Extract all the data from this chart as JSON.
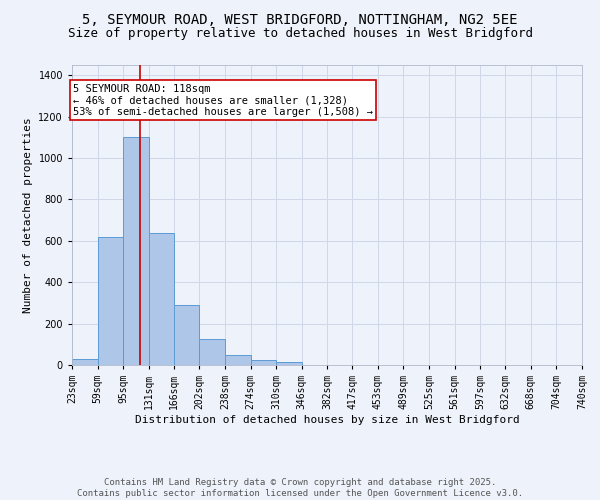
{
  "title_line1": "5, SEYMOUR ROAD, WEST BRIDGFORD, NOTTINGHAM, NG2 5EE",
  "title_line2": "Size of property relative to detached houses in West Bridgford",
  "xlabel": "Distribution of detached houses by size in West Bridgford",
  "ylabel": "Number of detached properties",
  "bins": [
    23,
    59,
    95,
    131,
    166,
    202,
    238,
    274,
    310,
    346,
    382,
    417,
    453,
    489,
    525,
    561,
    597,
    632,
    668,
    704,
    740
  ],
  "bin_labels": [
    "23sqm",
    "59sqm",
    "95sqm",
    "131sqm",
    "166sqm",
    "202sqm",
    "238sqm",
    "274sqm",
    "310sqm",
    "346sqm",
    "382sqm",
    "417sqm",
    "453sqm",
    "489sqm",
    "525sqm",
    "561sqm",
    "597sqm",
    "632sqm",
    "668sqm",
    "704sqm",
    "740sqm"
  ],
  "values": [
    30,
    620,
    1100,
    640,
    290,
    125,
    50,
    25,
    15,
    0,
    0,
    0,
    0,
    0,
    0,
    0,
    0,
    0,
    0,
    0
  ],
  "bar_color": "#aec6e8",
  "bar_edge_color": "#5b9bd5",
  "grid_color": "#d0d8e8",
  "bg_color": "#eef2fa",
  "vline_x": 118,
  "vline_color": "#cc0000",
  "annotation_text": "5 SEYMOUR ROAD: 118sqm\n← 46% of detached houses are smaller (1,328)\n53% of semi-detached houses are larger (1,508) →",
  "annotation_box_color": "#ffffff",
  "annotation_box_edge": "#cc0000",
  "ylim": [
    0,
    1450
  ],
  "yticks": [
    0,
    200,
    400,
    600,
    800,
    1000,
    1200,
    1400
  ],
  "footnote": "Contains HM Land Registry data © Crown copyright and database right 2025.\nContains public sector information licensed under the Open Government Licence v3.0.",
  "title_fontsize": 10,
  "subtitle_fontsize": 9,
  "axis_label_fontsize": 8,
  "tick_fontsize": 7,
  "annotation_fontsize": 7.5,
  "footnote_fontsize": 6.5
}
